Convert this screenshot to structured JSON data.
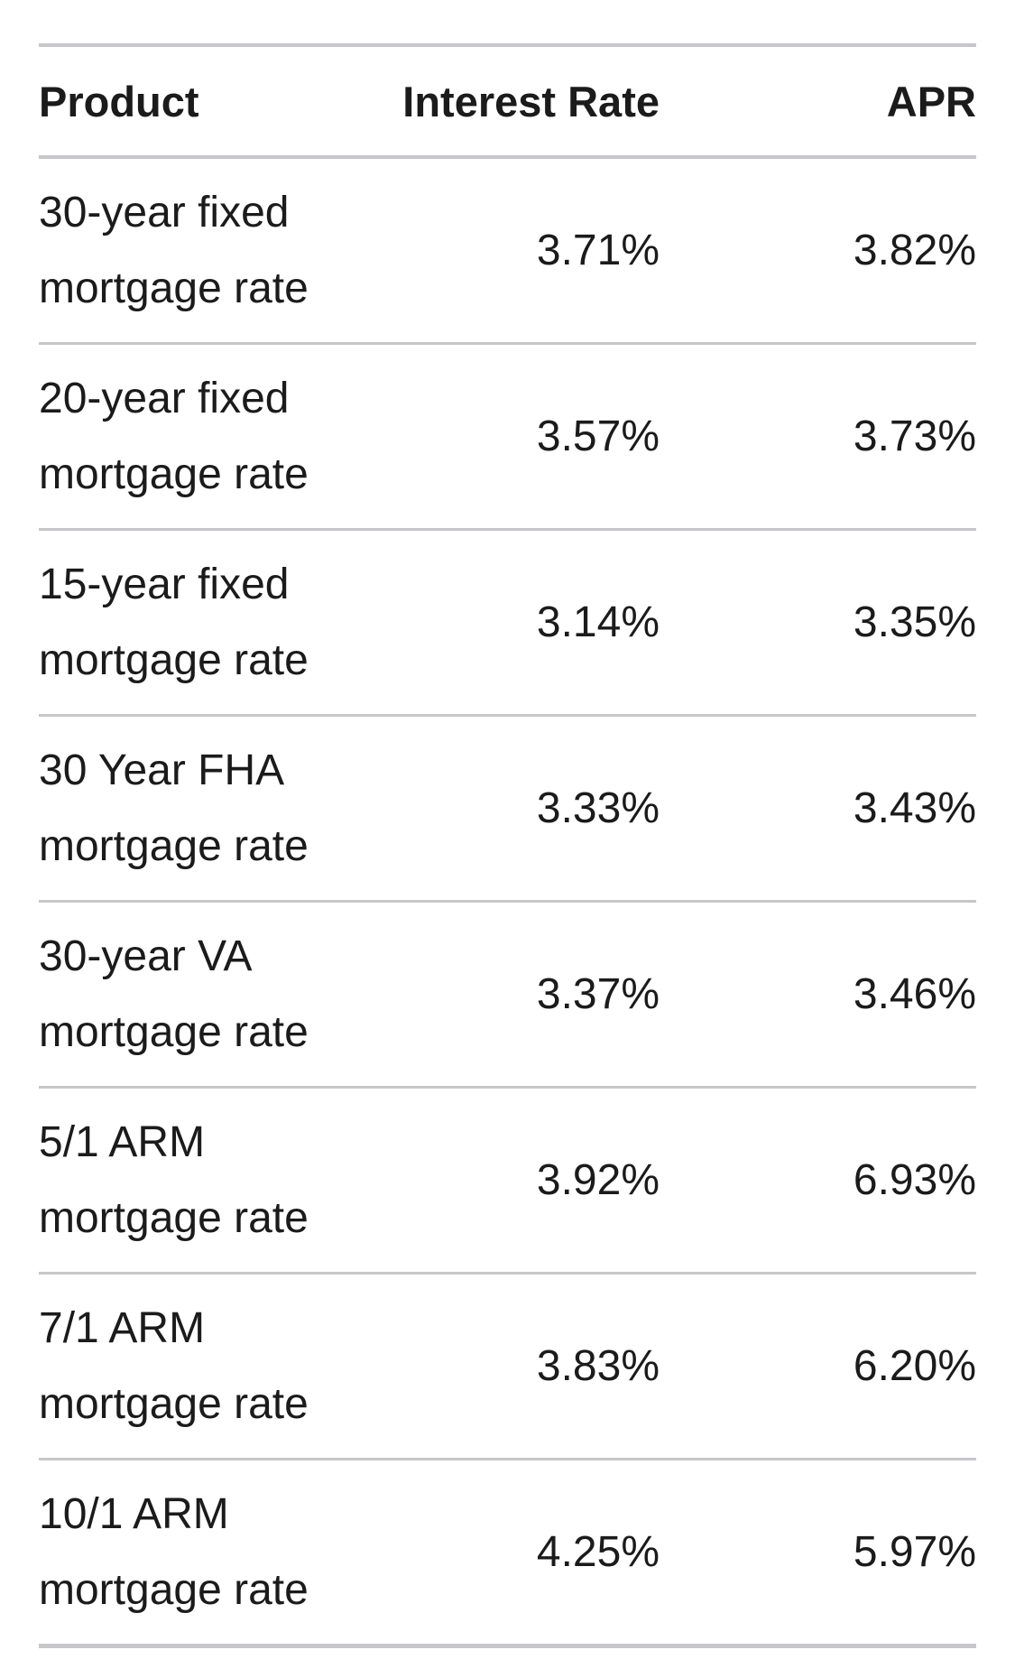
{
  "table": {
    "columns": [
      "Product",
      "Interest Rate",
      "APR"
    ],
    "rows": [
      {
        "product_line1": "30-year fixed",
        "product_line2": "mortgage rate",
        "interest_rate": "3.71%",
        "apr": "3.82%"
      },
      {
        "product_line1": "20-year fixed",
        "product_line2": "mortgage rate",
        "interest_rate": "3.57%",
        "apr": "3.73%"
      },
      {
        "product_line1": "15-year fixed",
        "product_line2": "mortgage rate",
        "interest_rate": "3.14%",
        "apr": "3.35%"
      },
      {
        "product_line1": "30 Year FHA",
        "product_line2": "mortgage rate",
        "interest_rate": "3.33%",
        "apr": "3.43%"
      },
      {
        "product_line1": "30-year VA",
        "product_line2": "mortgage rate",
        "interest_rate": "3.37%",
        "apr": "3.46%"
      },
      {
        "product_line1": "5/1 ARM",
        "product_line2": "mortgage rate",
        "interest_rate": "3.92%",
        "apr": "6.93%"
      },
      {
        "product_line1": "7/1 ARM",
        "product_line2": "mortgage rate",
        "interest_rate": "3.83%",
        "apr": "6.20%"
      },
      {
        "product_line1": "10/1 ARM",
        "product_line2": "mortgage rate",
        "interest_rate": "4.25%",
        "apr": "5.97%"
      }
    ]
  },
  "colors": {
    "background": "#ffffff",
    "text": "#1b1b1b",
    "separator": "#c7c7cb"
  },
  "chart_data": {
    "type": "table",
    "columns": [
      "Product",
      "Interest Rate",
      "APR"
    ],
    "rows": [
      [
        "30-year fixed mortgage rate",
        "3.71%",
        "3.82%"
      ],
      [
        "20-year fixed mortgage rate",
        "3.57%",
        "3.73%"
      ],
      [
        "15-year fixed mortgage rate",
        "3.14%",
        "3.35%"
      ],
      [
        "30 Year FHA mortgage rate",
        "3.33%",
        "3.43%"
      ],
      [
        "30-year VA mortgage rate",
        "3.37%",
        "3.46%"
      ],
      [
        "5/1 ARM mortgage rate",
        "3.92%",
        "6.93%"
      ],
      [
        "7/1 ARM mortgage rate",
        "3.83%",
        "6.20%"
      ],
      [
        "10/1 ARM mortgage rate",
        "4.25%",
        "5.97%"
      ]
    ]
  }
}
